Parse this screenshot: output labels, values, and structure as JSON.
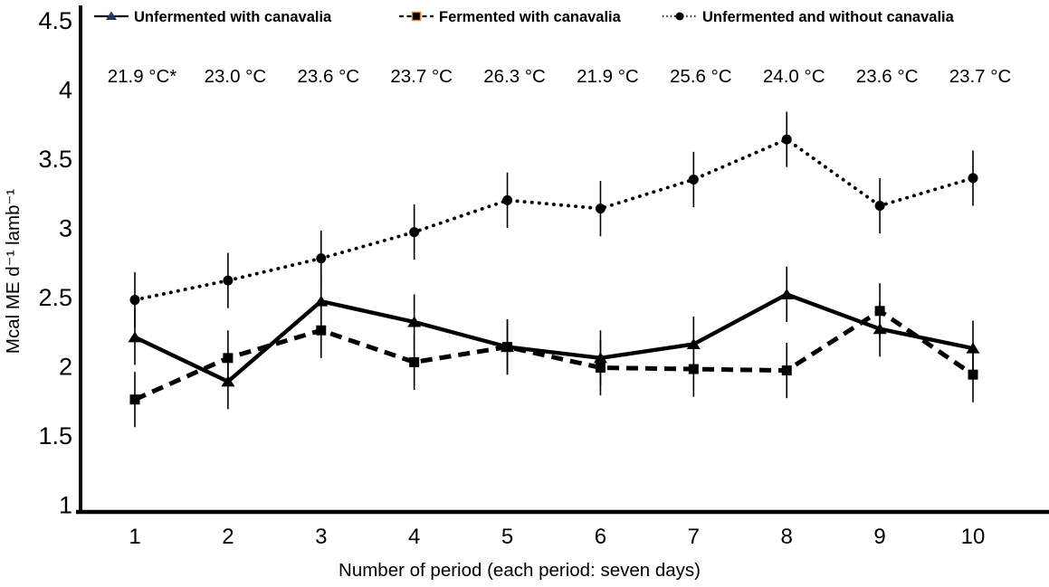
{
  "figure": {
    "background": "#ffffff",
    "line_color": "#000000",
    "legend_triangle_color": "#1f3864",
    "legend_square_fill": "#000000",
    "legend_square_border": "#ed7d31"
  },
  "chart_data": {
    "type": "line",
    "title": "",
    "xlabel": "Number of period (each period: seven days)",
    "ylabel": "Mcal ME d⁻¹ lamb⁻¹",
    "x": [
      1,
      2,
      3,
      4,
      5,
      6,
      7,
      8,
      9,
      10
    ],
    "xtick_labels": [
      "1",
      "2",
      "3",
      "4",
      "5",
      "6",
      "7",
      "8",
      "9",
      "10"
    ],
    "ylim": [
      1,
      4.5
    ],
    "yticks": [
      1,
      1.5,
      2,
      2.5,
      3,
      3.5,
      4,
      4.5
    ],
    "ytick_labels": [
      "1",
      "1.5",
      "2",
      "2.5",
      "3",
      "3.5",
      "4",
      "4.5"
    ],
    "grid": false,
    "legend_position": "top",
    "error_bar_halfwidth": 0.2,
    "temperature_labels": [
      "21.9 °C*",
      "23.0 °C",
      "23.6 °C",
      "23.7 °C",
      "26.3 °C",
      "21.9 °C",
      "25.6 °C",
      "24.0 °C",
      "23.6 °C",
      "23.7 °C"
    ],
    "series": [
      {
        "name": "Unfermented with canavalia",
        "line": "solid",
        "marker": "triangle",
        "values": [
          2.21,
          1.89,
          2.47,
          2.32,
          2.14,
          2.06,
          2.16,
          2.52,
          2.27,
          2.13
        ]
      },
      {
        "name": "Fermented with canavalia",
        "line": "dashed",
        "marker": "square",
        "values": [
          1.76,
          2.06,
          2.26,
          2.03,
          2.14,
          1.99,
          1.98,
          1.97,
          2.4,
          1.94
        ]
      },
      {
        "name": "Unfermented  and without canavalia",
        "line": "dotted",
        "marker": "circle",
        "values": [
          2.48,
          2.62,
          2.78,
          2.97,
          3.2,
          3.14,
          3.35,
          3.64,
          3.16,
          3.36
        ]
      }
    ]
  }
}
